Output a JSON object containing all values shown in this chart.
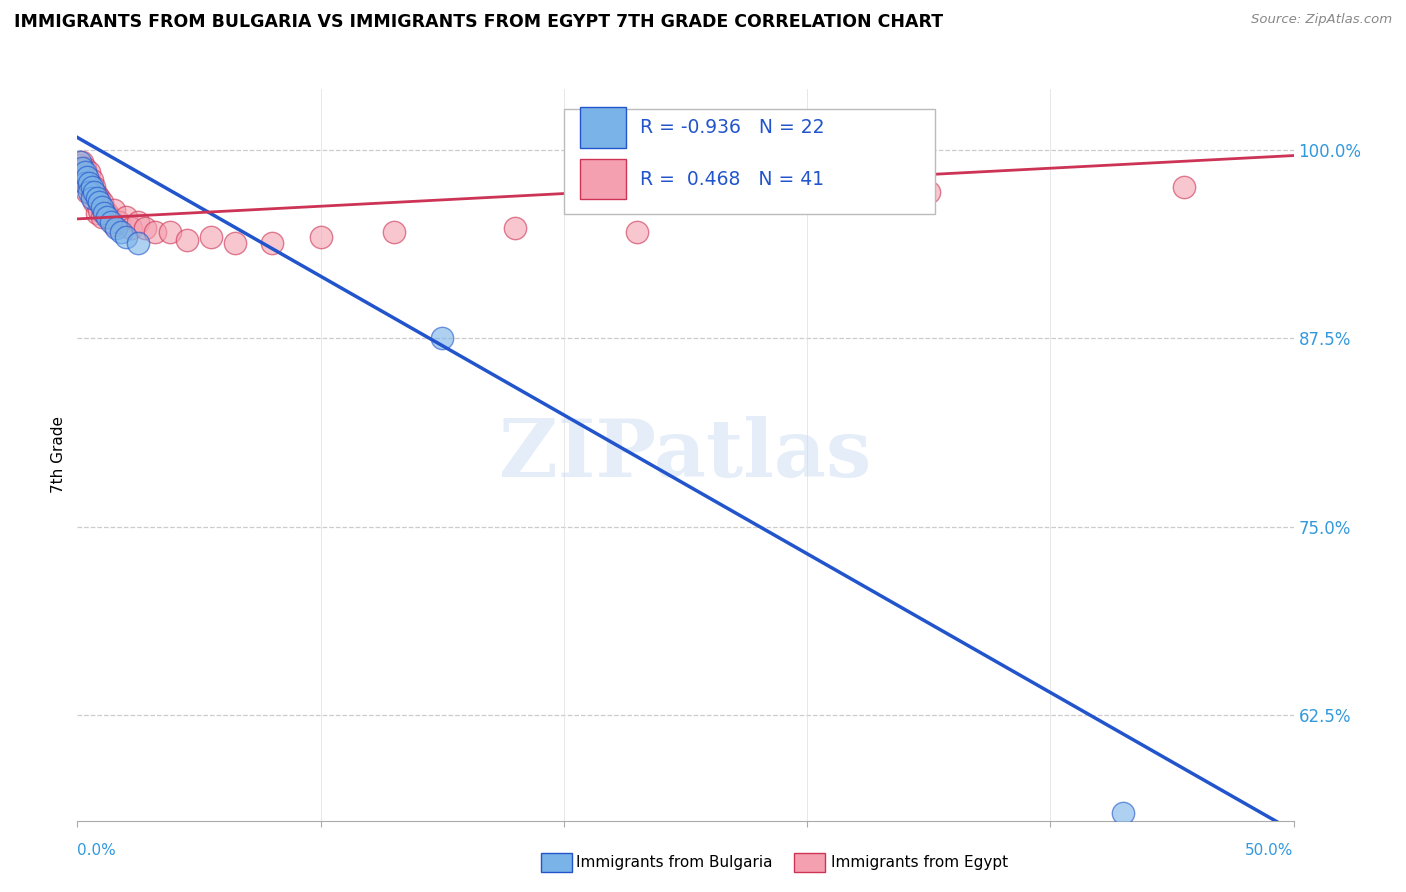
{
  "title": "IMMIGRANTS FROM BULGARIA VS IMMIGRANTS FROM EGYPT 7TH GRADE CORRELATION CHART",
  "source": "Source: ZipAtlas.com",
  "ylabel": "7th Grade",
  "y_ticks": [
    0.625,
    0.75,
    0.875,
    1.0
  ],
  "y_tick_labels": [
    "62.5%",
    "75.0%",
    "87.5%",
    "100.0%"
  ],
  "xlim": [
    0.0,
    0.5
  ],
  "ylim": [
    0.555,
    1.04
  ],
  "legend_blue_r": "-0.936",
  "legend_blue_n": "22",
  "legend_pink_r": "0.468",
  "legend_pink_n": "41",
  "blue_color": "#7ab3e8",
  "pink_color": "#f4a0b0",
  "trendline_blue": "#2255cc",
  "trendline_pink": "#cc3355",
  "watermark": "ZIPatlas",
  "blue_scatter": [
    [
      0.001,
      0.992
    ],
    [
      0.002,
      0.988
    ],
    [
      0.003,
      0.985
    ],
    [
      0.003,
      0.978
    ],
    [
      0.004,
      0.982
    ],
    [
      0.005,
      0.978
    ],
    [
      0.005,
      0.972
    ],
    [
      0.006,
      0.975
    ],
    [
      0.006,
      0.968
    ],
    [
      0.007,
      0.972
    ],
    [
      0.008,
      0.968
    ],
    [
      0.009,
      0.965
    ],
    [
      0.01,
      0.962
    ],
    [
      0.011,
      0.958
    ],
    [
      0.012,
      0.955
    ],
    [
      0.014,
      0.952
    ],
    [
      0.016,
      0.948
    ],
    [
      0.018,
      0.945
    ],
    [
      0.02,
      0.942
    ],
    [
      0.025,
      0.938
    ],
    [
      0.15,
      0.875
    ],
    [
      0.43,
      0.56
    ]
  ],
  "pink_scatter": [
    [
      0.001,
      0.99
    ],
    [
      0.002,
      0.985
    ],
    [
      0.002,
      0.992
    ],
    [
      0.003,
      0.988
    ],
    [
      0.003,
      0.978
    ],
    [
      0.004,
      0.982
    ],
    [
      0.004,
      0.972
    ],
    [
      0.005,
      0.985
    ],
    [
      0.005,
      0.975
    ],
    [
      0.006,
      0.98
    ],
    [
      0.006,
      0.97
    ],
    [
      0.007,
      0.975
    ],
    [
      0.007,
      0.965
    ],
    [
      0.008,
      0.97
    ],
    [
      0.008,
      0.958
    ],
    [
      0.009,
      0.968
    ],
    [
      0.009,
      0.96
    ],
    [
      0.01,
      0.965
    ],
    [
      0.01,
      0.955
    ],
    [
      0.011,
      0.96
    ],
    [
      0.012,
      0.958
    ],
    [
      0.013,
      0.955
    ],
    [
      0.015,
      0.96
    ],
    [
      0.015,
      0.95
    ],
    [
      0.017,
      0.952
    ],
    [
      0.02,
      0.955
    ],
    [
      0.022,
      0.948
    ],
    [
      0.025,
      0.952
    ],
    [
      0.028,
      0.948
    ],
    [
      0.032,
      0.945
    ],
    [
      0.038,
      0.945
    ],
    [
      0.045,
      0.94
    ],
    [
      0.055,
      0.942
    ],
    [
      0.065,
      0.938
    ],
    [
      0.08,
      0.938
    ],
    [
      0.1,
      0.942
    ],
    [
      0.13,
      0.945
    ],
    [
      0.18,
      0.948
    ],
    [
      0.23,
      0.945
    ],
    [
      0.35,
      0.972
    ],
    [
      0.455,
      0.975
    ]
  ],
  "blue_trend_x": [
    0.0,
    0.5
  ],
  "blue_trend_y": [
    1.008,
    0.548
  ],
  "pink_trend_x": [
    0.0,
    0.5
  ],
  "pink_trend_y": [
    0.954,
    0.996
  ]
}
